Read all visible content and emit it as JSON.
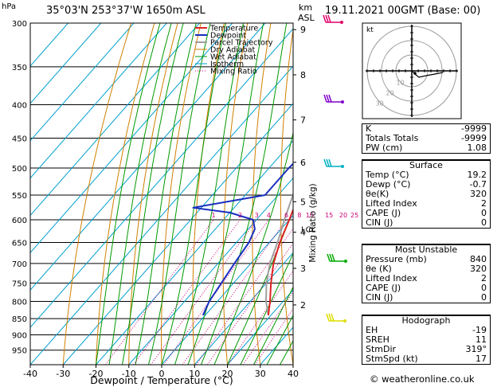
{
  "header": {
    "location": "35°03'N 253°37'W 1650m ASL",
    "hpa_unit": "hPa",
    "km_unit": "km",
    "asl_unit": "ASL",
    "datetime": "19.11.2021 00GMT (Base: 00)"
  },
  "chart_data": {
    "type": "line",
    "xlabel": "Dewpoint / Temperature (°C)",
    "ylabel": "hPa",
    "right_axis_label": "Mixing Ratio (g/kg)",
    "xlim": [
      -40,
      40
    ],
    "ylim": [
      1000,
      300
    ],
    "x_ticks": [
      -40,
      -30,
      -20,
      -10,
      0,
      10,
      20,
      30,
      40
    ],
    "pressure_ticks": [
      300,
      350,
      400,
      450,
      500,
      550,
      600,
      650,
      700,
      750,
      800,
      850,
      900,
      950
    ],
    "km_ticks": [
      {
        "label": "9",
        "p": 307
      },
      {
        "label": "8",
        "p": 360
      },
      {
        "label": "7",
        "p": 422
      },
      {
        "label": "6",
        "p": 490
      },
      {
        "label": "5",
        "p": 563
      },
      {
        "label": "4",
        "p": 627
      },
      {
        "label": "3",
        "p": 712
      },
      {
        "label": "2",
        "p": 810
      }
    ],
    "lcl_label": "LCL",
    "lcl_p": 620,
    "mixing_ratio_labels": [
      "1",
      "2",
      "3",
      "4",
      "6",
      "8",
      "10",
      "15",
      "20",
      "25"
    ],
    "series": [
      {
        "name": "Temperature",
        "color": "#dd2222",
        "p": [
          840,
          800,
          750,
          700,
          650,
          600,
          550,
          500,
          450,
          400,
          350,
          300
        ],
        "t": [
          19.2,
          16.0,
          11.4,
          6.9,
          3.2,
          0.0,
          -3.7,
          -9.8,
          -14.5,
          -21.5,
          -28.0,
          -37.0
        ]
      },
      {
        "name": "Dewpoint",
        "color": "#1a2fbf",
        "p": [
          840,
          800,
          750,
          700,
          650,
          620,
          600,
          585,
          575,
          550,
          500,
          460,
          430,
          400,
          380,
          350,
          335,
          320,
          305,
          300
        ],
        "t": [
          -0.7,
          -2.5,
          -3.7,
          -5.0,
          -6.2,
          -8.0,
          -11.0,
          -20.0,
          -32.5,
          -14.0,
          -14.0,
          -13.0,
          -15.0,
          -18.0,
          -19.0,
          -24.0,
          -28.0,
          -28.0,
          -28.5,
          -28.5
        ]
      },
      {
        "name": "Parcel Trajectory",
        "color": "#a0a0a0",
        "p": [
          840,
          800,
          750,
          700,
          650,
          620,
          600,
          550,
          500,
          450,
          400,
          350,
          300
        ],
        "t": [
          19.2,
          14.8,
          10.0,
          5.8,
          2.5,
          0.2,
          -1.5,
          -5.5,
          -10.5,
          -16.0,
          -22.5,
          -30.5,
          -40.0
        ]
      },
      {
        "name": "Dry Adiabat",
        "color": "#d08000"
      },
      {
        "name": "Wet Adiabat",
        "color": "#009900"
      },
      {
        "name": "Isotherm",
        "color": "#00a0d0"
      },
      {
        "name": "Mixing Ratio",
        "color": "#cc0077"
      }
    ],
    "grid": true,
    "legend_position": "top-left"
  },
  "hodograph": {
    "label": "kt",
    "ring_labels": [
      "10",
      "20",
      "30"
    ]
  },
  "indices": [
    {
      "label": "K",
      "value": "-9999"
    },
    {
      "label": "Totals Totals",
      "value": "-9999"
    },
    {
      "label": "PW (cm)",
      "value": "1.08"
    }
  ],
  "surface": {
    "title": "Surface",
    "rows": [
      {
        "label": "Temp (°C)",
        "value": "19.2"
      },
      {
        "label": "Dewp (°C)",
        "value": "-0.7"
      },
      {
        "label": "θe(K)",
        "value": "320"
      },
      {
        "label": "Lifted Index",
        "value": "2"
      },
      {
        "label": "CAPE (J)",
        "value": "0"
      },
      {
        "label": "CIN (J)",
        "value": "0"
      }
    ]
  },
  "most_unstable": {
    "title": "Most Unstable",
    "rows": [
      {
        "label": "Pressure (mb)",
        "value": "840"
      },
      {
        "label": "θe (K)",
        "value": "320"
      },
      {
        "label": "Lifted Index",
        "value": "2"
      },
      {
        "label": "CAPE (J)",
        "value": "0"
      },
      {
        "label": "CIN (J)",
        "value": "0"
      }
    ]
  },
  "hodograph_stats": {
    "title": "Hodograph",
    "rows": [
      {
        "label": "EH",
        "value": "-19"
      },
      {
        "label": "SREH",
        "value": "11"
      },
      {
        "label": "StmDir",
        "value": "319°"
      },
      {
        "label": "StmSpd (kt)",
        "value": "17"
      }
    ]
  },
  "footer": {
    "copyright": "© weatheronline.co.uk"
  }
}
